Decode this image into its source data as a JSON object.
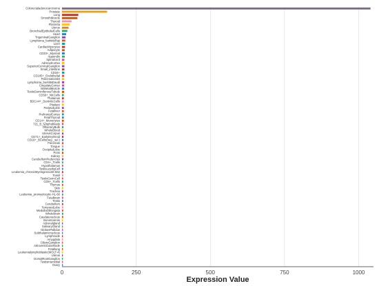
{
  "chart_data": {
    "type": "bar",
    "orientation": "horizontal",
    "xlabel": "Expression Value",
    "ylabel": "",
    "xlim": [
      0,
      1050
    ],
    "xticks": [
      0,
      250,
      500,
      750,
      1000
    ],
    "grid": true,
    "categories": [
      "Colorectaladenocarcinoma",
      "Prostate",
      "Lung",
      "SmoothMuscle",
      "Thyroid",
      "Placenta",
      "Uterus",
      "BronchialEpithelialCells",
      "Heart",
      "TrigeminalGanglion",
      "Lymphoma_burkittsRaji",
      "Liver",
      "CardiacMyocytes",
      "Adipocyte",
      "CD33+_Myeloid",
      "Appendix",
      "Spinalcord",
      "AdrenalCortex",
      "SuperiorCervicalGanglion",
      "Small_intestine",
      "CD34+",
      "CD105+_Endothelial",
      "Pancreaticislet",
      "Lymphoma_burkittsDaudi",
      "CingulateCortex",
      "SkeletalMuscle",
      "TestisSeminiferousTubule",
      "CD56+_NKCells",
      "Thalamus",
      "BDCA4+_DentriticCells",
      "Pituitary",
      "ParietalLobe",
      "Fetalliver",
      "PrefrontalCortex",
      "FetalThyroid",
      "CD14+_Monocytes",
      "721_B_lymphoblasts",
      "OlfactoryBulb",
      "WholeBlood",
      "UterusCorpus",
      "CD71+_EarlyErythroid",
      "CD19+_BCells(neg._sel.)",
      "Pancreas",
      "Tongue",
      "OccipitalLobe",
      "Pons",
      "Kidney",
      "CerebellumPeduncles",
      "CD4+_Tcells",
      "Hypothalamus",
      "TestisLeydigCell",
      "Leukemia_chronicMyelogenousK-562",
      "Tonsil",
      "TestisGermCell",
      "CD8+_Tcells",
      "Thymus",
      "Skin",
      "Trachea",
      "Leukemia_promyelocytic-HL-60",
      "Fetalbrain",
      "Testis",
      "Cerebellum",
      "TemporalLobe",
      "MedullaOblongata",
      "Wholebrain",
      "Caudatenucleus",
      "Bonemarrow",
      "Adrenalgland",
      "SalivaryGland",
      "GlobusPallidus",
      "Subthalamicnucleus",
      "Lymphnode",
      "Amygdala",
      "CiliaryGanglion",
      "AtrioventricularNode",
      "Fetallung",
      "Leukemialymphoblastic(MOLT-4)",
      "Uterus",
      "DorsalRootGanglion",
      "Testisinterstitial",
      "Ovary"
    ],
    "values": [
      1040,
      152,
      55,
      52,
      32,
      26,
      22,
      18,
      14,
      12,
      11,
      10,
      10,
      9,
      9,
      9,
      8,
      8,
      8,
      8,
      8,
      7,
      7,
      7,
      7,
      7,
      7,
      6,
      6,
      6,
      6,
      6,
      6,
      6,
      6,
      6,
      5,
      5,
      5,
      5,
      5,
      5,
      5,
      5,
      5,
      5,
      5,
      5,
      4,
      4,
      4,
      4,
      4,
      4,
      4,
      4,
      4,
      4,
      4,
      4,
      4,
      4,
      4,
      4,
      4,
      4,
      3,
      3,
      3,
      3,
      3,
      3,
      3,
      3,
      3,
      3,
      3,
      3,
      3,
      3,
      3
    ],
    "colors": [
      "#7b6b85",
      "#e8a21a",
      "#c0392b",
      "#d35400",
      "#f48fb1",
      "#f3c623",
      "#e67e22",
      "#27ae60",
      "#2e86c1",
      "#8e44ad",
      "#e74c3c",
      "#16a085",
      "#c0392b",
      "#d35400",
      "#2980b9",
      "#27ae60",
      "#e84393",
      "#f1c40f",
      "#8e44ad",
      "#c0392b",
      "#16a085",
      "#e74c3c",
      "#f1c40f",
      "#8e44ad",
      "#e84393",
      "#2e86c1",
      "#d35400",
      "#27ae60",
      "#c0392b",
      "#f48fb1",
      "#f1c40f",
      "#8e44ad",
      "#e74c3c",
      "#16a085",
      "#2e86c1",
      "#d35400",
      "#e84393",
      "#27ae60",
      "#f1c40f",
      "#8e44ad",
      "#c0392b",
      "#2e86c1",
      "#e74c3c",
      "#f48fb1",
      "#16a085",
      "#d35400",
      "#f1c40f",
      "#8e44ad",
      "#27ae60",
      "#e84393",
      "#2e86c1",
      "#c0392b",
      "#f48fb1",
      "#e74c3c",
      "#16a085",
      "#d35400",
      "#f1c40f",
      "#8e44ad",
      "#27ae60",
      "#e84393",
      "#2e86c1",
      "#c0392b",
      "#f48fb1",
      "#e74c3c",
      "#16a085",
      "#d35400",
      "#f1c40f",
      "#8e44ad",
      "#27ae60",
      "#e84393",
      "#2e86c1",
      "#c0392b",
      "#f48fb1",
      "#e74c3c",
      "#16a085",
      "#d35400",
      "#f1c40f",
      "#8e44ad",
      "#27ae60",
      "#e84393",
      "#2e86c1"
    ]
  }
}
